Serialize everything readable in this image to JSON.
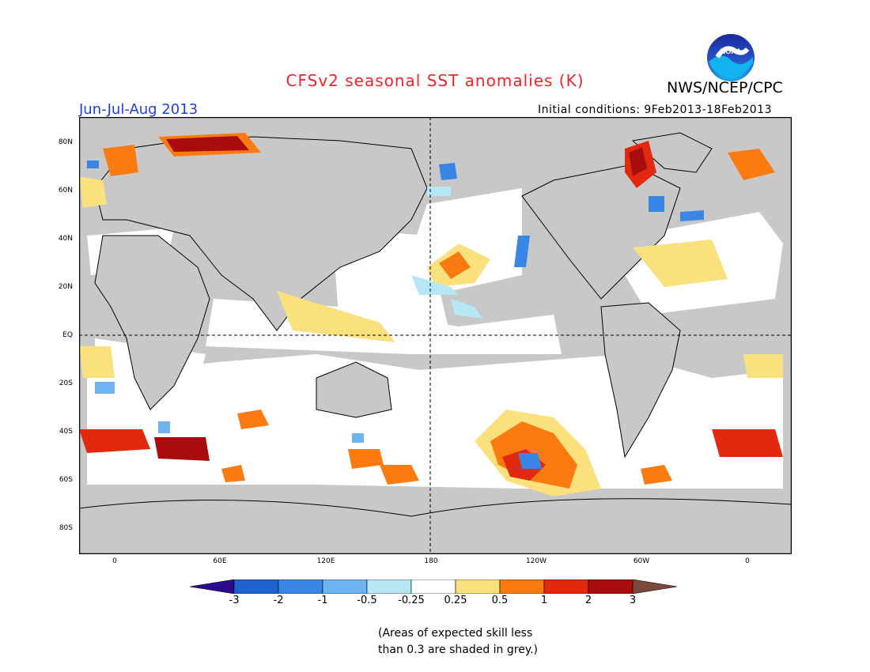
{
  "header": {
    "title": "CFSv2 seasonal SST anomalies (K)",
    "agency": "NWS/NCEP/CPC",
    "season": "Jun-Jul-Aug 2013",
    "initial_conditions": "Initial conditions: 9Feb2013-18Feb2013",
    "logo_text": "NOAA"
  },
  "map": {
    "lat_labels": [
      "80N",
      "60N",
      "40N",
      "20N",
      "EQ",
      "20S",
      "40S",
      "60S",
      "80S"
    ],
    "lon_labels": [
      "0",
      "60E",
      "120E",
      "180",
      "120W",
      "60W",
      "0"
    ],
    "land_color": "#c8c8c8",
    "reference_lines": [
      "EQ",
      "180"
    ]
  },
  "colorbar": {
    "labels": [
      "-3",
      "-2",
      "-1",
      "-0.5",
      "-0.25",
      "0.25",
      "0.5",
      "1",
      "2",
      "3"
    ],
    "colors": [
      "#2b0a8f",
      "#1f63d1",
      "#3a86e6",
      "#6fb3f0",
      "#b7e7f5",
      "#ffffff",
      "#fbe17e",
      "#fc7b10",
      "#e2280f",
      "#a80c0c",
      "#7b4a3a"
    ]
  },
  "footnote": {
    "line1": "(Areas of expected skill less",
    "line2": "than 0.3 are shaded in grey.)"
  }
}
